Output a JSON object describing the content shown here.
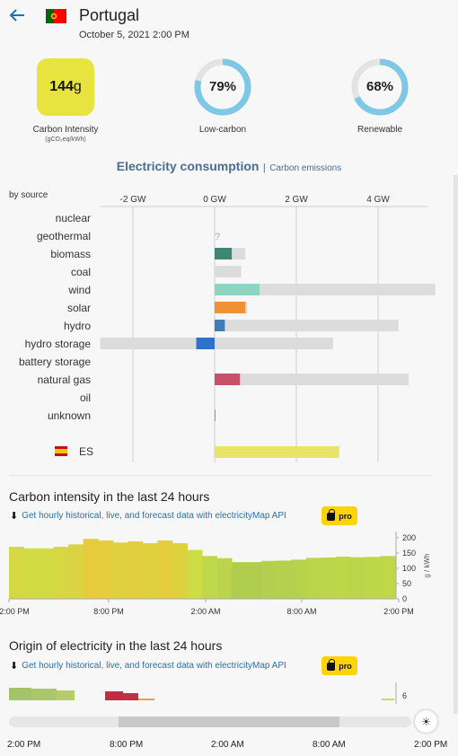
{
  "header": {
    "title": "Portugal",
    "datetime": "October 5, 2021 2:00 PM"
  },
  "kpis": {
    "carbon_intensity": {
      "value": "144",
      "unit": "g",
      "label": "Carbon Intensity",
      "sublabel": "(gCO₂eq/kWh)"
    },
    "low_carbon": {
      "value": "79%",
      "label": "Low-carbon",
      "fraction": 0.79
    },
    "renewable": {
      "value": "68%",
      "label": "Renewable",
      "fraction": 0.68
    }
  },
  "tabs": {
    "active": "Electricity consumption",
    "separator": "|",
    "inactive": "Carbon emissions"
  },
  "colors": {
    "accent": "#2a6fa8",
    "donut": "#7ec8e6",
    "ci_yellow": "#e8e43f",
    "pro": "#ffd400"
  },
  "chart_data": [
    {
      "type": "bar",
      "title": "Electricity consumption",
      "ylabel": "by source",
      "xlim": [
        -2.8,
        5.2
      ],
      "x_ticks": [
        -2,
        0,
        2,
        4
      ],
      "x_tick_labels": [
        "-2 GW",
        "0 GW",
        "2 GW",
        "4 GW"
      ],
      "categories": [
        "nuclear",
        "geothermal",
        "biomass",
        "coal",
        "wind",
        "solar",
        "hydro",
        "hydro storage",
        "battery storage",
        "natural gas",
        "oil",
        "unknown"
      ],
      "series": [
        {
          "values": [
            0,
            0,
            0.42,
            0,
            1.1,
            0.75,
            0.25,
            -0.45,
            0,
            0.62,
            0,
            0.01
          ]
        },
        {
          "values": [
            0,
            0,
            0.75,
            0.65,
            5.4,
            0.8,
            4.5,
            2.9,
            0,
            4.75,
            0,
            0.02
          ]
        },
        {
          "values": [
            0,
            0,
            0,
            0,
            0,
            0,
            0,
            -2.8,
            0,
            0,
            0,
            0
          ]
        }
      ],
      "unknown_marks": {
        "geothermal": "?"
      },
      "exchange": {
        "label": "ES",
        "value": 3.05
      }
    },
    {
      "type": "area",
      "title": "Carbon intensity in the last 24 hours",
      "ylabel": "g / kWh",
      "ylim": [
        0,
        220
      ],
      "y_ticks": [
        0,
        50,
        100,
        150,
        200
      ],
      "x_tick_labels": [
        "2:00 PM",
        "8:00 PM",
        "2:00 AM",
        "8:00 AM",
        "2:00 PM"
      ],
      "values": [
        170,
        165,
        165,
        170,
        178,
        196,
        191,
        184,
        188,
        182,
        191,
        182,
        160,
        140,
        133,
        120,
        120,
        124,
        125,
        128,
        134,
        135,
        138,
        136,
        137,
        140
      ]
    },
    {
      "type": "area",
      "title": "Origin of electricity in the last 24 hours",
      "y_tick_labels": [
        "6"
      ],
      "x_tick_labels": [
        "2:00 PM",
        "8:00 PM",
        "2:00 AM",
        "8:00 AM",
        "2:00 PM"
      ]
    }
  ],
  "download": {
    "text": "Get hourly historical, live, and forecast data with electricityMap API",
    "pro_label": "pro"
  },
  "timeline": {
    "ticks": [
      "2:00 PM",
      "8:00 PM",
      "2:00 AM",
      "8:00 AM",
      "2:00 PM"
    ]
  }
}
